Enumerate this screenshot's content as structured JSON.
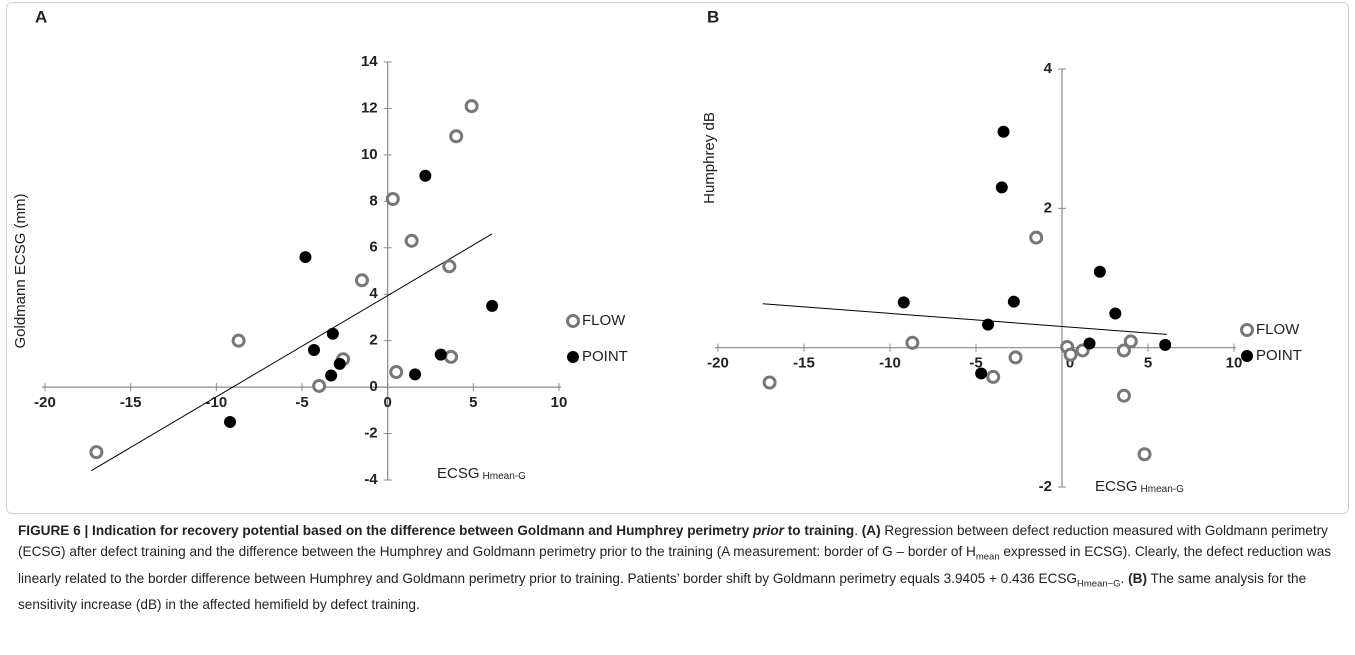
{
  "chart_data": [
    {
      "type": "scatter",
      "panel": "A",
      "ylabel": "Goldmann ECSG  (mm)",
      "xlabel": "ECSG",
      "xlabel_sub": "Hmean-G",
      "xlim": [
        -20,
        10
      ],
      "ylim": [
        -4,
        14
      ],
      "xticks": [
        -20,
        -15,
        -10,
        -5,
        0,
        5,
        10
      ],
      "yticks": [
        -4,
        -2,
        0,
        2,
        4,
        6,
        8,
        10,
        12,
        14
      ],
      "series": [
        {
          "name": "FLOW",
          "color": "#777777",
          "marker": "open",
          "x": [
            -17.0,
            -8.7,
            -4.0,
            -2.6,
            -1.5,
            0.3,
            0.5,
            1.4,
            3.6,
            3.7,
            4.0,
            4.9
          ],
          "values": [
            -2.8,
            2.0,
            0.05,
            1.2,
            4.6,
            8.1,
            0.65,
            6.3,
            5.2,
            1.3,
            10.8,
            12.1
          ]
        },
        {
          "name": "POINT",
          "color": "#000000",
          "marker": "filled",
          "x": [
            -9.2,
            -4.8,
            -4.3,
            -3.2,
            -3.3,
            -2.8,
            2.2,
            3.1,
            1.6,
            6.1
          ],
          "values": [
            -1.5,
            5.6,
            1.6,
            2.3,
            0.5,
            1.0,
            9.1,
            1.4,
            0.55,
            3.5
          ]
        }
      ],
      "trendline": {
        "x": [
          -17.3,
          6.1
        ],
        "values": [
          -3.6,
          6.6
        ]
      }
    },
    {
      "type": "scatter",
      "panel": "B",
      "ylabel": "Humphrey dB",
      "xlabel": "ECSG",
      "xlabel_sub": "Hmean-G",
      "xlim": [
        -20,
        10
      ],
      "ylim": [
        -2,
        4
      ],
      "xticks": [
        -20,
        -15,
        -10,
        -5,
        0,
        5,
        10
      ],
      "yticks": [
        -2,
        2,
        4
      ],
      "series": [
        {
          "name": "FLOW",
          "color": "#777777",
          "marker": "open",
          "x": [
            -17.0,
            -8.7,
            -4.0,
            -2.7,
            -1.5,
            0.3,
            0.5,
            1.2,
            3.6,
            4.0,
            3.6,
            4.8
          ],
          "values": [
            -0.5,
            0.07,
            -0.42,
            -0.14,
            1.58,
            0.01,
            -0.1,
            -0.04,
            -0.04,
            0.09,
            -0.69,
            -1.53
          ]
        },
        {
          "name": "POINT",
          "color": "#000000",
          "marker": "filled",
          "x": [
            -9.2,
            -4.7,
            -4.3,
            -3.4,
            -3.5,
            -2.8,
            1.6,
            2.2,
            3.1,
            6.0
          ],
          "values": [
            0.65,
            -0.37,
            0.33,
            3.1,
            2.3,
            0.66,
            0.06,
            1.09,
            0.49,
            0.04
          ]
        }
      ],
      "trendline": {
        "x": [
          -17.4,
          6.1
        ],
        "values": [
          0.63,
          0.19
        ]
      }
    }
  ],
  "caption": {
    "parts": [
      "FIGURE 6 | Indication for recovery potential based on the difference between Goldmann and Humphrey perimetry ",
      "prior",
      " to training",
      ". ",
      "(A)",
      " Regression between defect reduction measured with Goldmann perimetry (ECSG) after defect training and the difference between the Humphrey and Goldmann perimetry prior to the training (A measurement: border of G – border of H",
      "mean",
      " expressed in ECSG). Clearly, the defect reduction was linearly related to the border difference between Humphrey and Goldmann perimetry prior to training. Patients’ border shift by Goldmann perimetry equals 3.9405 + 0.436 ECSG",
      "Hmean−G",
      ". ",
      "(B)",
      " The same analysis for the sensitivity increase (dB) in the affected hemifield by defect training."
    ]
  }
}
